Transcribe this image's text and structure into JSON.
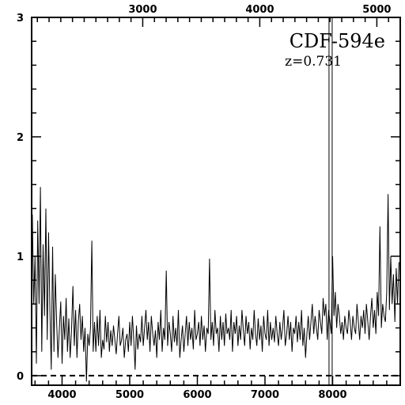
{
  "chart_data": {
    "type": "line",
    "annotation": {
      "object": "CDF-594e",
      "redshift": "z=0.731"
    },
    "x_bottom": {
      "lim": [
        3550,
        9000
      ],
      "ticks": [
        4000,
        5000,
        6000,
        7000,
        8000
      ],
      "tick_labels": [
        "4000",
        "5000",
        "6000",
        "7000",
        "8000"
      ]
    },
    "x_top": {
      "lim": [
        2051,
        5200
      ],
      "ticks": [
        3000,
        4000,
        5000
      ],
      "tick_labels": [
        "3000",
        "4000",
        "5000"
      ]
    },
    "y": {
      "lim": [
        -0.08,
        3.0
      ],
      "ticks": [
        0,
        1,
        2,
        3
      ],
      "tick_labels": [
        "0",
        "1",
        "2",
        "3"
      ]
    },
    "zero_line": {
      "y": 0,
      "style": "dashed"
    },
    "vertical_marker": {
      "x": 7970
    },
    "series": [
      {
        "x": [
          3560,
          3580,
          3600,
          3620,
          3640,
          3660,
          3680,
          3700,
          3720,
          3740,
          3760,
          3780,
          3800,
          3820,
          3840,
          3860,
          3880,
          3900,
          3920,
          3940,
          3960,
          3980,
          4000,
          4020,
          4040,
          4060,
          4080,
          4100,
          4120,
          4140,
          4160,
          4180,
          4200,
          4220,
          4240,
          4260,
          4280,
          4300,
          4320,
          4340,
          4360,
          4380,
          4400,
          4420,
          4440,
          4460,
          4480,
          4500,
          4520,
          4540,
          4560,
          4580,
          4600,
          4620,
          4640,
          4660,
          4680,
          4700,
          4720,
          4740,
          4760,
          4780,
          4800,
          4820,
          4840,
          4860,
          4880,
          4900,
          4920,
          4940,
          4960,
          4980,
          5000,
          5020,
          5040,
          5060,
          5080,
          5100,
          5120,
          5140,
          5160,
          5180,
          5200,
          5220,
          5240,
          5260,
          5280,
          5300,
          5320,
          5340,
          5360,
          5380,
          5400,
          5420,
          5440,
          5460,
          5480,
          5500,
          5520,
          5540,
          5560,
          5580,
          5600,
          5620,
          5640,
          5660,
          5680,
          5700,
          5720,
          5740,
          5760,
          5780,
          5800,
          5820,
          5840,
          5860,
          5880,
          5900,
          5920,
          5940,
          5960,
          5980,
          6000,
          6020,
          6040,
          6060,
          6080,
          6100,
          6120,
          6140,
          6160,
          6180,
          6200,
          6220,
          6240,
          6260,
          6280,
          6300,
          6320,
          6340,
          6360,
          6380,
          6400,
          6420,
          6440,
          6460,
          6480,
          6500,
          6520,
          6540,
          6560,
          6580,
          6600,
          6620,
          6640,
          6660,
          6680,
          6700,
          6720,
          6740,
          6760,
          6780,
          6800,
          6820,
          6840,
          6860,
          6880,
          6900,
          6920,
          6940,
          6960,
          6980,
          7000,
          7020,
          7040,
          7060,
          7080,
          7100,
          7120,
          7140,
          7160,
          7180,
          7200,
          7220,
          7240,
          7260,
          7280,
          7300,
          7320,
          7340,
          7360,
          7380,
          7400,
          7420,
          7440,
          7460,
          7480,
          7500,
          7520,
          7540,
          7560,
          7580,
          7600,
          7620,
          7640,
          7660,
          7680,
          7700,
          7720,
          7740,
          7760,
          7780,
          7800,
          7820,
          7840,
          7860,
          7880,
          7900,
          7920,
          7940,
          7960,
          7980,
          8000,
          8020,
          8040,
          8060,
          8080,
          8100,
          8120,
          8140,
          8160,
          8180,
          8200,
          8220,
          8240,
          8260,
          8280,
          8300,
          8320,
          8340,
          8360,
          8380,
          8400,
          8420,
          8440,
          8460,
          8480,
          8500,
          8520,
          8540,
          8560,
          8580,
          8600,
          8620,
          8640,
          8660,
          8680,
          8700,
          8720,
          8740,
          8760,
          8780,
          8800,
          8820,
          8840,
          8860,
          8880,
          8900,
          8920,
          8940,
          8960,
          8980
        ],
        "y": [
          1.35,
          0.6,
          1.0,
          0.1,
          1.3,
          0.6,
          1.58,
          0.2,
          1.1,
          0.5,
          1.4,
          0.3,
          1.2,
          0.55,
          0.05,
          1.08,
          0.2,
          0.85,
          0.45,
          0.15,
          0.4,
          0.62,
          0.1,
          0.5,
          0.3,
          0.65,
          0.2,
          0.48,
          0.15,
          0.38,
          0.75,
          0.25,
          0.55,
          0.15,
          0.45,
          0.6,
          0.3,
          0.5,
          0.2,
          0.4,
          -0.05,
          0.35,
          0.25,
          0.4,
          1.13,
          0.2,
          0.45,
          0.2,
          0.5,
          0.25,
          0.55,
          0.15,
          0.3,
          0.22,
          0.5,
          0.28,
          0.45,
          0.2,
          0.38,
          0.25,
          0.42,
          0.3,
          0.18,
          0.35,
          0.5,
          0.25,
          0.3,
          0.4,
          0.15,
          0.3,
          0.35,
          0.2,
          0.45,
          0.25,
          0.5,
          0.3,
          0.05,
          0.42,
          0.22,
          0.35,
          0.28,
          0.5,
          0.25,
          0.4,
          0.55,
          0.3,
          0.45,
          0.2,
          0.5,
          0.35,
          0.25,
          0.38,
          0.15,
          0.45,
          0.3,
          0.55,
          0.2,
          0.4,
          0.3,
          0.88,
          0.25,
          0.45,
          0.35,
          0.2,
          0.5,
          0.28,
          0.4,
          0.25,
          0.55,
          0.15,
          0.3,
          0.42,
          0.2,
          0.35,
          0.5,
          0.25,
          0.45,
          0.3,
          0.4,
          0.22,
          0.55,
          0.3,
          0.35,
          0.45,
          0.25,
          0.5,
          0.3,
          0.42,
          0.2,
          0.4,
          0.35,
          0.98,
          0.3,
          0.45,
          0.25,
          0.55,
          0.35,
          0.4,
          0.2,
          0.5,
          0.3,
          0.45,
          0.25,
          0.52,
          0.35,
          0.4,
          0.3,
          0.55,
          0.2,
          0.45,
          0.35,
          0.5,
          0.25,
          0.42,
          0.3,
          0.55,
          0.38,
          0.25,
          0.5,
          0.35,
          0.45,
          0.22,
          0.4,
          0.3,
          0.55,
          0.35,
          0.25,
          0.48,
          0.3,
          0.42,
          0.2,
          0.5,
          0.35,
          0.3,
          0.55,
          0.25,
          0.45,
          0.3,
          0.4,
          0.28,
          0.5,
          0.35,
          0.25,
          0.45,
          0.3,
          0.4,
          0.55,
          0.25,
          0.35,
          0.5,
          0.3,
          0.45,
          0.2,
          0.4,
          0.35,
          0.5,
          0.28,
          0.45,
          0.3,
          0.55,
          0.25,
          0.4,
          0.15,
          0.35,
          0.5,
          0.3,
          0.45,
          0.6,
          0.35,
          0.5,
          0.4,
          0.3,
          0.55,
          0.45,
          0.35,
          0.65,
          0.5,
          0.6,
          0.3,
          0.55,
          0.45,
          0.35,
          1.0,
          0.5,
          0.7,
          0.4,
          0.6,
          0.5,
          0.35,
          0.45,
          0.3,
          0.5,
          0.4,
          0.35,
          0.55,
          0.45,
          0.3,
          0.5,
          0.4,
          0.35,
          0.6,
          0.45,
          0.3,
          0.5,
          0.4,
          0.55,
          0.35,
          0.6,
          0.45,
          0.3,
          0.5,
          0.65,
          0.4,
          0.55,
          0.35,
          0.7,
          0.5,
          1.25,
          0.4,
          0.6,
          0.5,
          0.45,
          0.7,
          1.52,
          0.55,
          1.0,
          0.6,
          0.85,
          0.45,
          0.9,
          0.6,
          0.95
        ]
      }
    ]
  }
}
